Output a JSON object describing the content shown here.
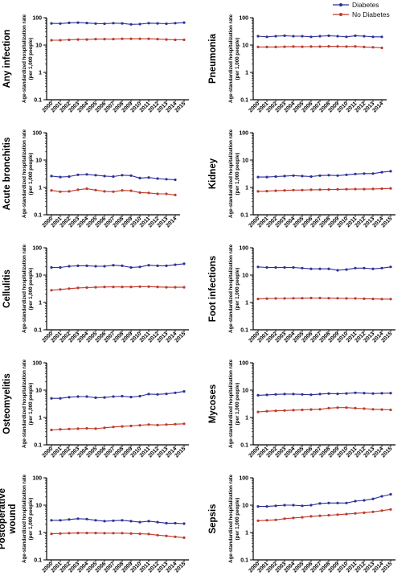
{
  "legend": {
    "diabetes_label": "Diabetes",
    "no_diabetes_label": "No Diabetes",
    "diabetes_color": "#2d2f9a",
    "no_diabetes_color": "#c0392b"
  },
  "chart_data": [
    {
      "type": "line",
      "title": "Any infection",
      "ylabel": "Age-standardized hospitalization rate\n(per 1,000 people)",
      "yscale": "log",
      "ylim": [
        0.1,
        100
      ],
      "yticks": [
        "0.1",
        "1",
        "10",
        "100"
      ],
      "x": [
        "2000",
        "2001",
        "2002",
        "2003",
        "2004",
        "2005",
        "2006",
        "2007",
        "2008",
        "2009",
        "2010",
        "2011",
        "2012",
        "2013",
        "2014",
        "2015"
      ],
      "series": [
        {
          "name": "Diabetes",
          "values": [
            62,
            61,
            65,
            66,
            64,
            61,
            60,
            63,
            62,
            57,
            58,
            63,
            62,
            60,
            63,
            66
          ]
        },
        {
          "name": "No Diabetes",
          "values": [
            15,
            15,
            15.5,
            16,
            16,
            16.5,
            16.5,
            16.5,
            17,
            17,
            17,
            17,
            16.5,
            16,
            15.5,
            15.5
          ]
        }
      ]
    },
    {
      "type": "line",
      "title": "Pneumonia",
      "ylabel": "Age-standardized hospitalization rate\n(per 1,000 people)",
      "yscale": "log",
      "ylim": [
        0.1,
        100
      ],
      "yticks": [
        "0.1",
        "1",
        "10",
        "100"
      ],
      "x": [
        "2000",
        "2001",
        "2002",
        "2003",
        "2004",
        "2005",
        "2006",
        "2007",
        "2008",
        "2009",
        "2010",
        "2011",
        "2012",
        "2013",
        "2014"
      ],
      "series": [
        {
          "name": "Diabetes",
          "values": [
            21,
            20,
            21,
            22,
            21,
            21,
            20,
            21,
            22,
            21,
            20,
            22,
            21,
            20,
            20
          ]
        },
        {
          "name": "No Diabetes",
          "values": [
            8.5,
            8.5,
            8.5,
            8.7,
            8.8,
            8.7,
            8.8,
            8.8,
            9.0,
            8.9,
            8.8,
            8.9,
            8.5,
            8.3,
            7.9
          ]
        }
      ]
    },
    {
      "type": "line",
      "title": "Acute bronchitis",
      "ylabel": "Age-standardized hospitalization rate\n(per 1,000 people)",
      "yscale": "log",
      "ylim": [
        0.1,
        100
      ],
      "yticks": [
        "0.1",
        "1",
        "10",
        "100"
      ],
      "x": [
        "2000",
        "2001",
        "2002",
        "2003",
        "2004",
        "2005",
        "2006",
        "2007",
        "2008",
        "2009",
        "2010",
        "2011",
        "2012",
        "2013",
        "2014"
      ],
      "series": [
        {
          "name": "Diabetes",
          "values": [
            2.6,
            2.4,
            2.5,
            2.9,
            3.0,
            2.8,
            2.6,
            2.5,
            2.8,
            2.7,
            2.2,
            2.3,
            2.1,
            2.0,
            1.9
          ]
        },
        {
          "name": "No Diabetes",
          "values": [
            0.78,
            0.7,
            0.72,
            0.82,
            0.9,
            0.8,
            0.72,
            0.7,
            0.78,
            0.76,
            0.65,
            0.63,
            0.58,
            0.58,
            0.53
          ]
        }
      ]
    },
    {
      "type": "line",
      "title": "Kidney",
      "ylabel": "Age-standardized hospitalization rate\n(per 1,000 people)",
      "yscale": "log",
      "ylim": [
        0.1,
        100
      ],
      "yticks": [
        "0.1",
        "1",
        "10",
        "100"
      ],
      "x": [
        "2000",
        "2001",
        "2002",
        "2003",
        "2004",
        "2005",
        "2006",
        "2007",
        "2008",
        "2009",
        "2010",
        "2011",
        "2012",
        "2013",
        "2014",
        "2015"
      ],
      "series": [
        {
          "name": "Diabetes",
          "values": [
            2.4,
            2.4,
            2.5,
            2.6,
            2.7,
            2.6,
            2.5,
            2.7,
            2.8,
            2.7,
            2.9,
            3.1,
            3.2,
            3.2,
            3.6,
            3.9
          ]
        },
        {
          "name": "No Diabetes",
          "values": [
            0.72,
            0.73,
            0.76,
            0.78,
            0.8,
            0.8,
            0.82,
            0.83,
            0.84,
            0.85,
            0.86,
            0.87,
            0.87,
            0.88,
            0.9,
            0.92
          ]
        }
      ]
    },
    {
      "type": "line",
      "title": "Cellulitis",
      "ylabel": "Age-standardized hospitalization rate\n(per 1,000 people)",
      "yscale": "log",
      "ylim": [
        0.1,
        100
      ],
      "yticks": [
        "0.1",
        "1",
        "10",
        "100"
      ],
      "x": [
        "2000",
        "2001",
        "2002",
        "2003",
        "2004",
        "2005",
        "2006",
        "2007",
        "2008",
        "2009",
        "2010",
        "2011",
        "2012",
        "2013",
        "2014",
        "2015"
      ],
      "series": [
        {
          "name": "Diabetes",
          "values": [
            19,
            19,
            21,
            22,
            22,
            21,
            21,
            23,
            22,
            19,
            20,
            23,
            22,
            22,
            24,
            26
          ]
        },
        {
          "name": "No Diabetes",
          "values": [
            2.8,
            3.0,
            3.2,
            3.4,
            3.5,
            3.6,
            3.7,
            3.7,
            3.7,
            3.7,
            3.8,
            3.8,
            3.7,
            3.6,
            3.6,
            3.6
          ]
        }
      ]
    },
    {
      "type": "line",
      "title": "Foot infections",
      "ylabel": "Age-standardized hospitalization rate\n(per 1,000 people)",
      "yscale": "log",
      "ylim": [
        0.1,
        100
      ],
      "yticks": [
        "0.1",
        "1",
        "10",
        "100"
      ],
      "x": [
        "2000",
        "2001",
        "2002",
        "2003",
        "2004",
        "2005",
        "2006",
        "2007",
        "2008",
        "2009",
        "2010",
        "2011",
        "2012",
        "2013",
        "2014",
        "2015"
      ],
      "series": [
        {
          "name": "Diabetes",
          "values": [
            20,
            19,
            19,
            19,
            19,
            18,
            17,
            17,
            17,
            15,
            16,
            18,
            18,
            17,
            18,
            20
          ]
        },
        {
          "name": "No Diabetes",
          "values": [
            1.35,
            1.38,
            1.4,
            1.4,
            1.42,
            1.43,
            1.45,
            1.45,
            1.43,
            1.42,
            1.4,
            1.4,
            1.37,
            1.35,
            1.33,
            1.33
          ]
        }
      ]
    },
    {
      "type": "line",
      "title": "Osteomyelitis",
      "ylabel": "Age-standardized hospitalization rate\n(per 1,000 people)",
      "yscale": "log",
      "ylim": [
        0.1,
        100
      ],
      "yticks": [
        "0.1",
        "1",
        "10",
        "100"
      ],
      "x": [
        "2000",
        "2001",
        "2002",
        "2003",
        "2004",
        "2005",
        "2006",
        "2007",
        "2008",
        "2009",
        "2010",
        "2011",
        "2012",
        "2013",
        "2014",
        "2015"
      ],
      "series": [
        {
          "name": "Diabetes",
          "values": [
            5.0,
            5.0,
            5.5,
            5.8,
            5.8,
            5.3,
            5.4,
            5.8,
            6.0,
            5.6,
            6.0,
            7.2,
            7.0,
            7.3,
            8.0,
            9.0
          ]
        },
        {
          "name": "No Diabetes",
          "values": [
            0.35,
            0.37,
            0.38,
            0.39,
            0.4,
            0.39,
            0.42,
            0.45,
            0.47,
            0.49,
            0.52,
            0.55,
            0.53,
            0.55,
            0.57,
            0.59
          ]
        }
      ]
    },
    {
      "type": "line",
      "title": "Mycoses",
      "ylabel": "Age-standardized hospitalization rate\n(per 1,000 people)",
      "yscale": "log",
      "ylim": [
        0.1,
        100
      ],
      "yticks": [
        "0.1",
        "1",
        "10",
        "100"
      ],
      "x": [
        "2000",
        "2001",
        "2002",
        "2003",
        "2004",
        "2005",
        "2006",
        "2007",
        "2008",
        "2009",
        "2010",
        "2011",
        "2012",
        "2013",
        "2014",
        "2015"
      ],
      "series": [
        {
          "name": "Diabetes",
          "values": [
            6.5,
            6.7,
            7.0,
            7.2,
            7.2,
            7.0,
            6.8,
            7.2,
            7.5,
            7.3,
            7.6,
            8.0,
            7.8,
            7.5,
            7.7,
            7.8
          ]
        },
        {
          "name": "No Diabetes",
          "values": [
            1.6,
            1.7,
            1.75,
            1.8,
            1.85,
            1.9,
            1.95,
            2.0,
            2.2,
            2.3,
            2.3,
            2.2,
            2.1,
            2.0,
            1.95,
            1.9
          ]
        }
      ]
    },
    {
      "type": "line",
      "title": "Postoperative\nwound",
      "ylabel": "Age-standardized hospitalization rate\n(per 1,000 people)",
      "yscale": "log",
      "ylim": [
        0.1,
        100
      ],
      "yticks": [
        "0.1",
        "1",
        "10",
        "100"
      ],
      "x": [
        "2000",
        "2001",
        "2002",
        "2003",
        "2004",
        "2005",
        "2006",
        "2007",
        "2008",
        "2009",
        "2010",
        "2011",
        "2012",
        "2013",
        "2014",
        "2015"
      ],
      "series": [
        {
          "name": "Diabetes",
          "values": [
            2.8,
            2.8,
            3.0,
            3.2,
            3.1,
            2.8,
            2.6,
            2.7,
            2.8,
            2.6,
            2.4,
            2.6,
            2.4,
            2.2,
            2.2,
            2.1
          ]
        },
        {
          "name": "No Diabetes",
          "values": [
            0.9,
            0.92,
            0.95,
            0.96,
            0.96,
            0.96,
            0.95,
            0.95,
            0.95,
            0.92,
            0.9,
            0.88,
            0.8,
            0.75,
            0.7,
            0.65
          ]
        }
      ]
    },
    {
      "type": "line",
      "title": "Sepsis",
      "ylabel": "Age-standardized hospitalization rate\n(per 1,000 people)",
      "yscale": "log",
      "ylim": [
        0.1,
        100
      ],
      "yticks": [
        "0.1",
        "1",
        "10",
        "100"
      ],
      "x": [
        "2000",
        "2001",
        "2002",
        "2003",
        "2004",
        "2005",
        "2006",
        "2007",
        "2008",
        "2009",
        "2010",
        "2011",
        "2012",
        "2013",
        "2014",
        "2015"
      ],
      "series": [
        {
          "name": "Diabetes",
          "values": [
            9.0,
            9.0,
            9.5,
            10,
            10,
            9.5,
            10,
            11.5,
            12,
            12,
            12,
            14,
            15,
            17,
            21,
            25
          ]
        },
        {
          "name": "No Diabetes",
          "values": [
            2.7,
            2.8,
            2.9,
            3.2,
            3.4,
            3.6,
            3.9,
            4.1,
            4.3,
            4.5,
            4.7,
            5.0,
            5.3,
            5.7,
            6.3,
            7.0
          ]
        }
      ]
    }
  ]
}
